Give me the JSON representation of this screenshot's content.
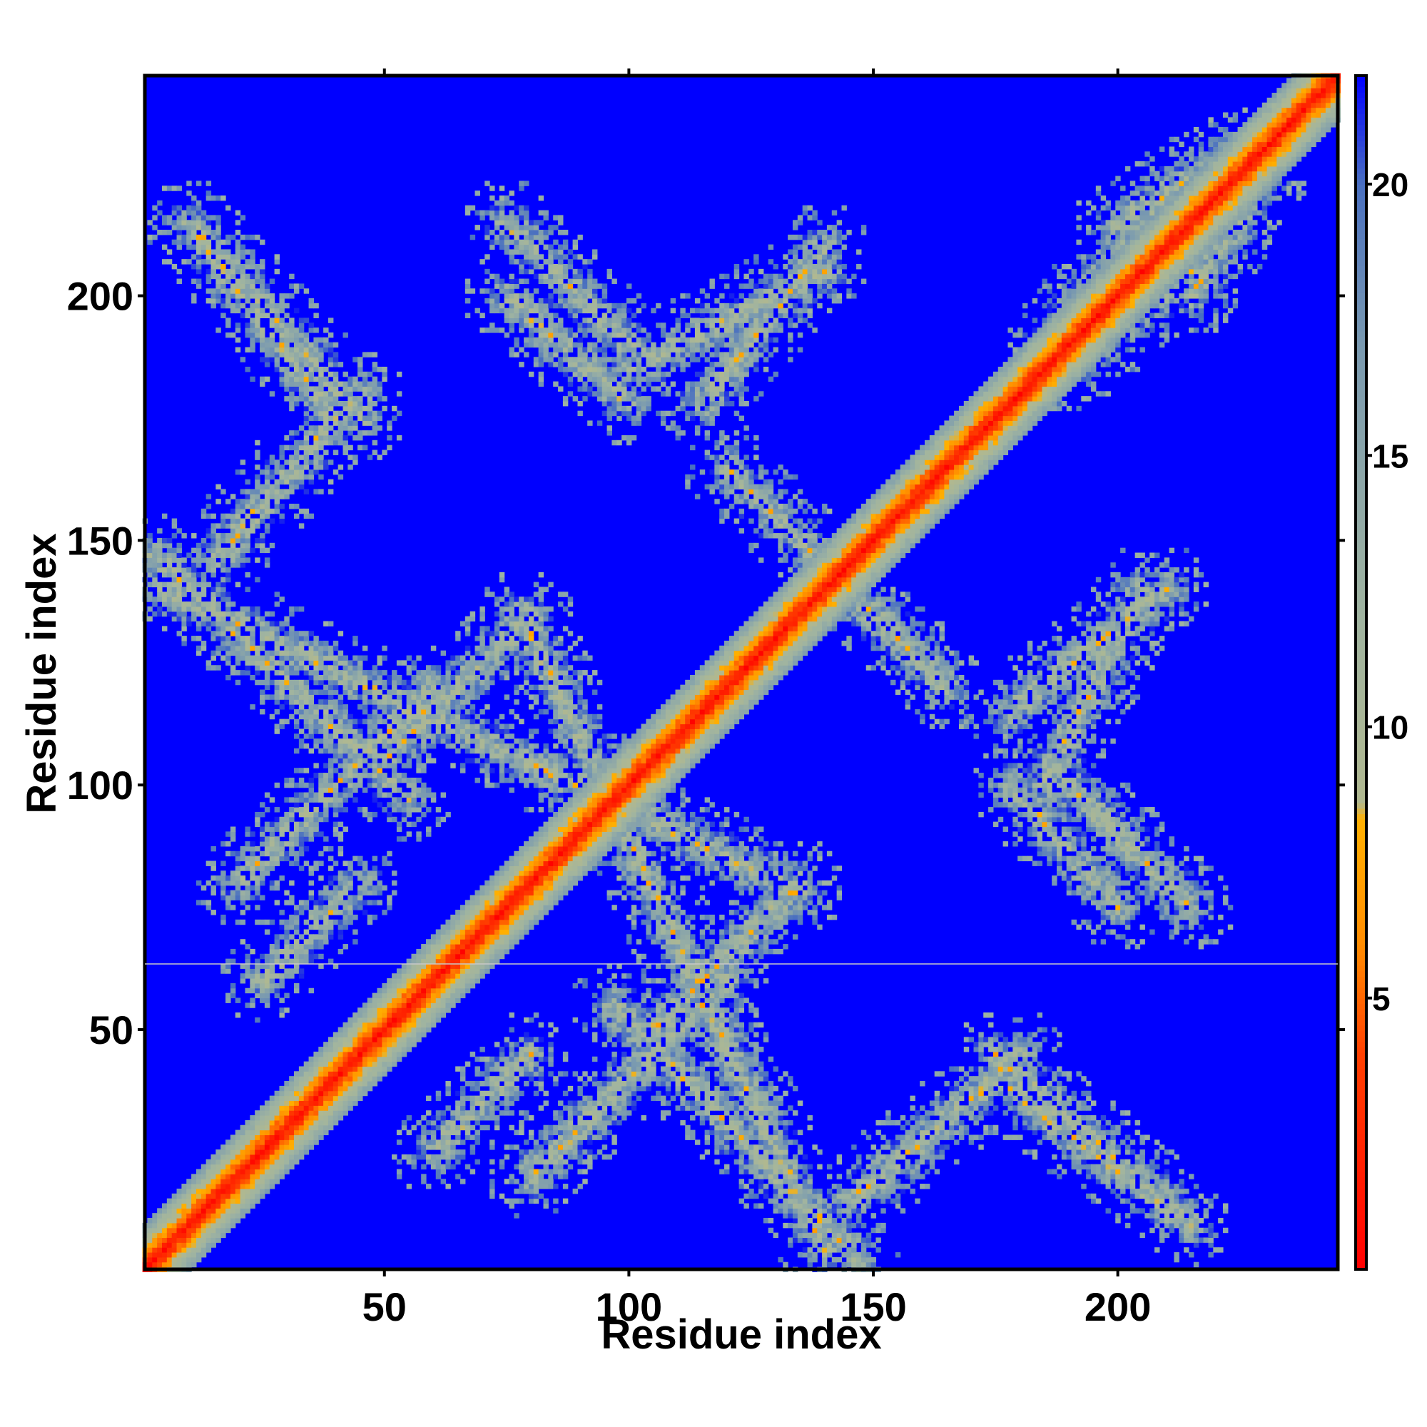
{
  "chart_data": {
    "type": "heatmap",
    "title": "",
    "xlabel": "Residue index",
    "ylabel": "Residue index",
    "xlim": [
      1,
      245
    ],
    "ylim": [
      1,
      245
    ],
    "x_ticks": [
      50,
      100,
      150,
      200
    ],
    "y_ticks": [
      50,
      100,
      150,
      200
    ],
    "colorbar": {
      "range": [
        0,
        22
      ],
      "ticks": [
        5,
        10,
        15,
        20
      ],
      "palette": [
        {
          "value": 0,
          "color": "#ff0000"
        },
        {
          "value": 4,
          "color": "#ff4000"
        },
        {
          "value": 6,
          "color": "#ff8c00"
        },
        {
          "value": 8.3,
          "color": "#ffb000"
        },
        {
          "value": 8.6,
          "color": "#b0b890"
        },
        {
          "value": 12,
          "color": "#a0b4a0"
        },
        {
          "value": 17,
          "color": "#7a9ab0"
        },
        {
          "value": 20,
          "color": "#4a70c0"
        },
        {
          "value": 22,
          "color": "#0000ff"
        }
      ]
    },
    "background_color": "#0000ff",
    "diagonal_band": {
      "from": 1,
      "to": 245,
      "half_width_residues": 9
    },
    "contact_bands": [
      {
        "x1": 3,
        "y1": 147,
        "x2": 55,
        "y2": 97
      },
      {
        "x1": 10,
        "y1": 215,
        "x2": 45,
        "y2": 175
      },
      {
        "x1": 18,
        "y1": 150,
        "x2": 45,
        "y2": 180
      },
      {
        "x1": 20,
        "y1": 80,
        "x2": 40,
        "y2": 100
      },
      {
        "x1": 50,
        "y1": 105,
        "x2": 80,
        "y2": 135
      },
      {
        "x1": 78,
        "y1": 135,
        "x2": 140,
        "y2": 5
      },
      {
        "x1": 75,
        "y1": 200,
        "x2": 100,
        "y2": 178
      },
      {
        "x1": 115,
        "y1": 178,
        "x2": 140,
        "y2": 210
      },
      {
        "x1": 120,
        "y1": 165,
        "x2": 155,
        "y2": 130
      },
      {
        "x1": 190,
        "y1": 185,
        "x2": 220,
        "y2": 210
      },
      {
        "x1": 185,
        "y1": 100,
        "x2": 205,
        "y2": 140
      },
      {
        "x1": 190,
        "y1": 100,
        "x2": 215,
        "y2": 75
      },
      {
        "x1": 145,
        "y1": 15,
        "x2": 175,
        "y2": 40
      },
      {
        "x1": 175,
        "y1": 40,
        "x2": 215,
        "y2": 10
      },
      {
        "x1": 120,
        "y1": 60,
        "x2": 100,
        "y2": 40
      },
      {
        "x1": 60,
        "y1": 25,
        "x2": 80,
        "y2": 45
      },
      {
        "x1": 200,
        "y1": 215,
        "x2": 225,
        "y2": 230
      }
    ]
  }
}
